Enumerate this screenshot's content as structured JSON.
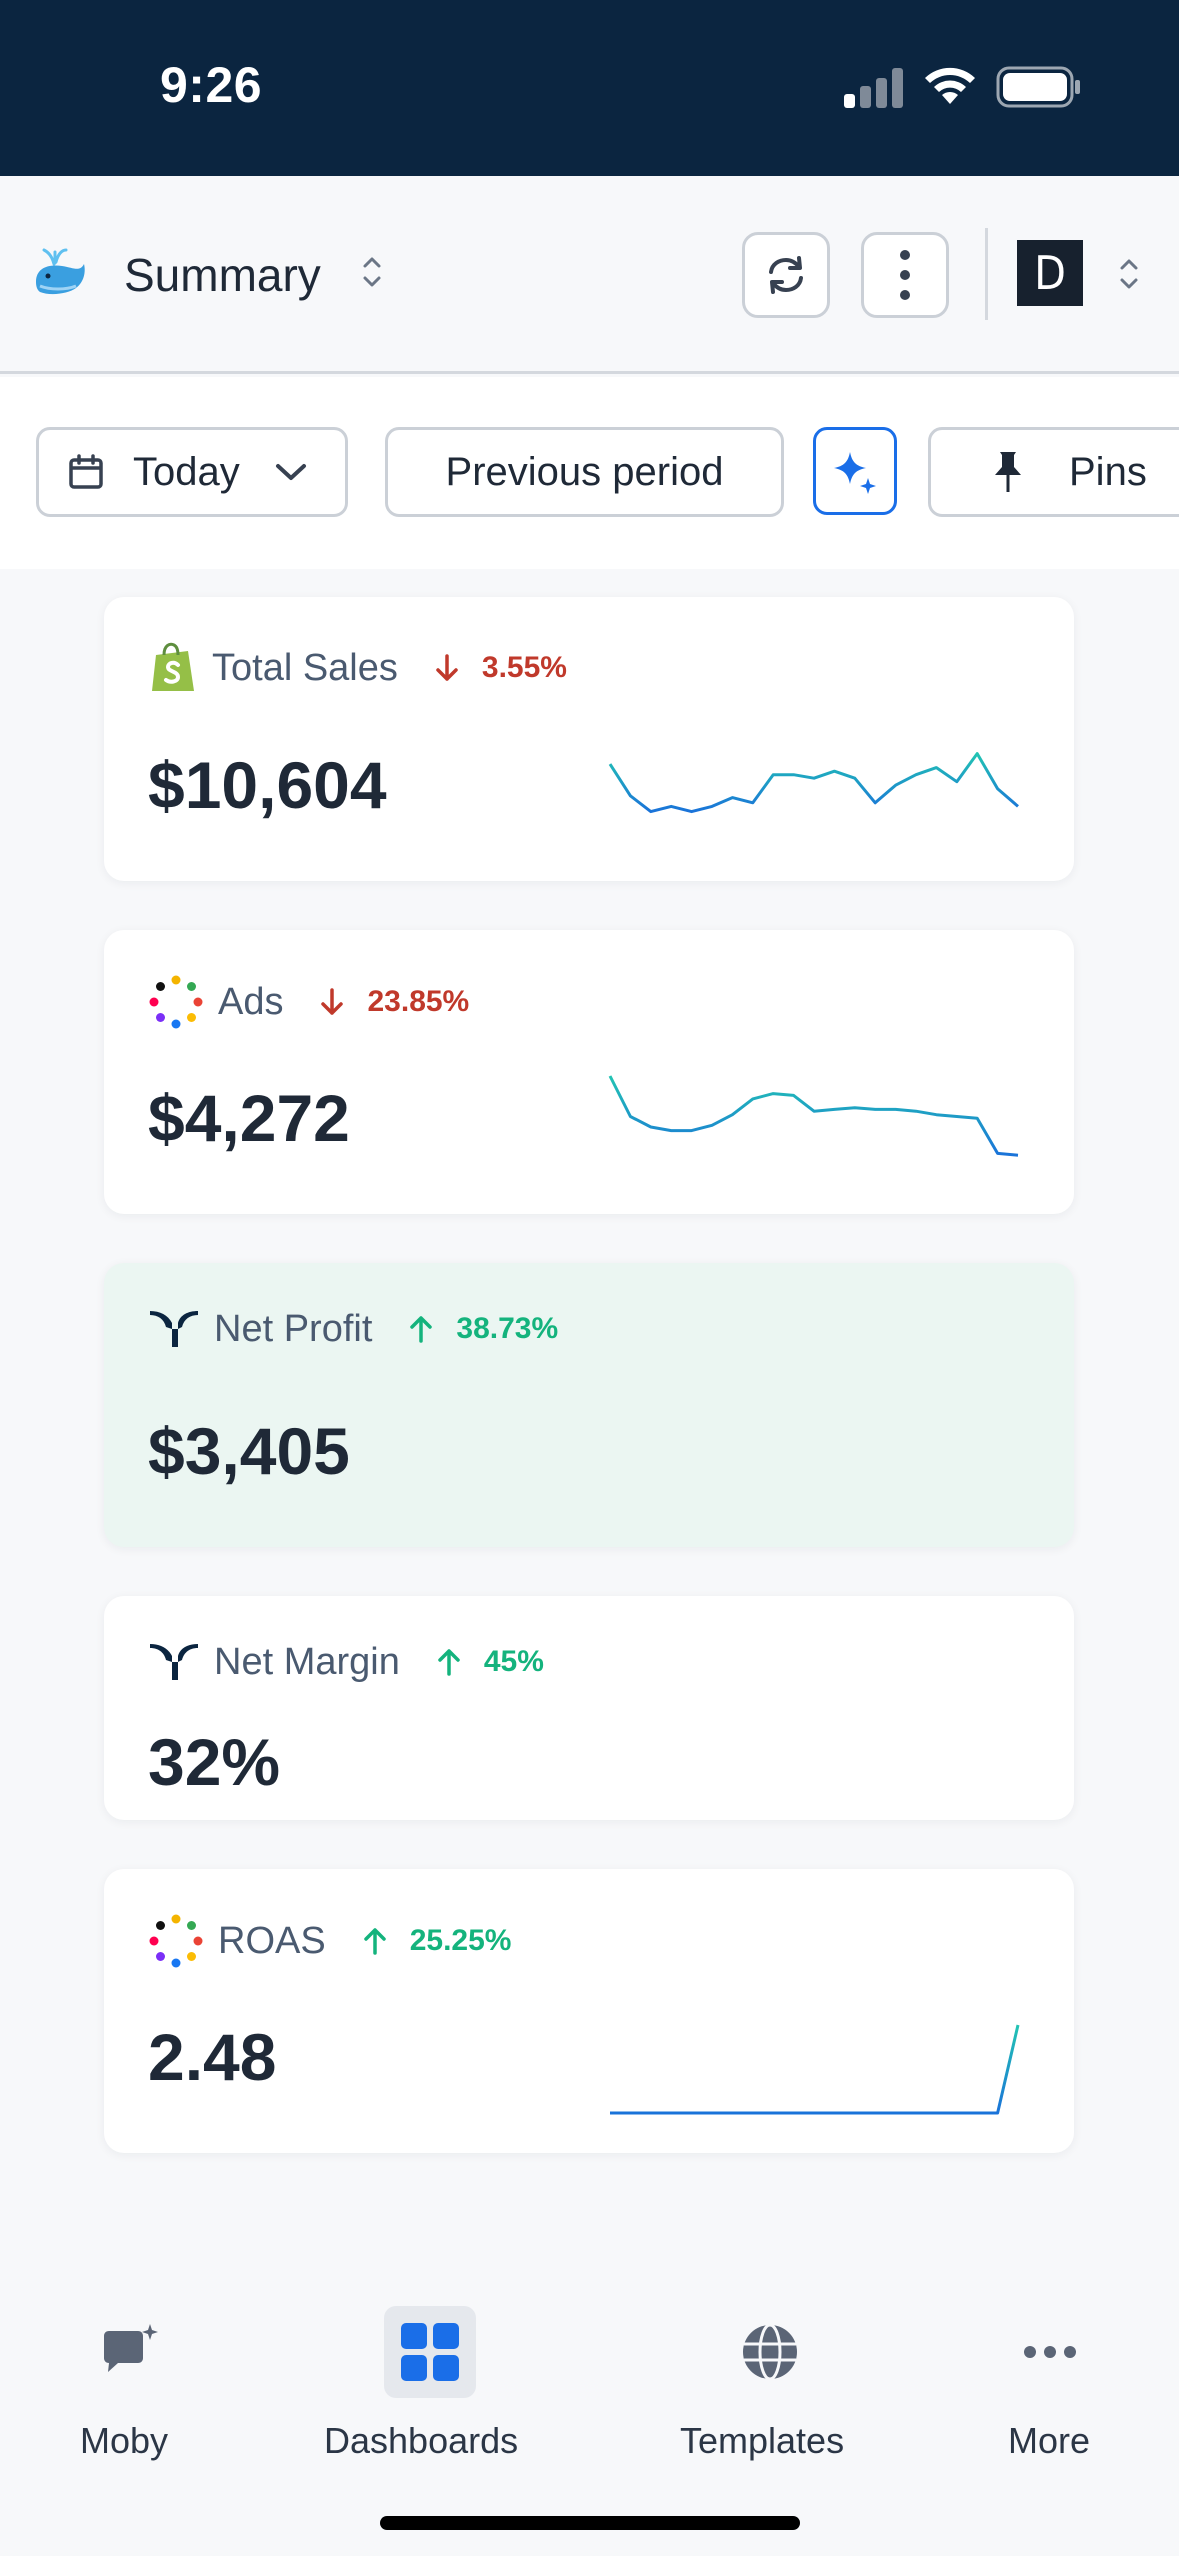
{
  "status_bar": {
    "time": "9:26"
  },
  "header": {
    "title": "Summary",
    "avatar_letter": "D"
  },
  "filters": {
    "date_label": "Today",
    "compare_label": "Previous period",
    "pins_label": "Pins"
  },
  "cards": [
    {
      "title": "Total Sales",
      "change": "3.55%",
      "direction": "down",
      "value": "$10,604",
      "icon": "shopify-icon",
      "sparkline": [
        38,
        20,
        11,
        14,
        11,
        14,
        19,
        16,
        32,
        32,
        30,
        34,
        30,
        16,
        26,
        32,
        36,
        28,
        44,
        24,
        14
      ]
    },
    {
      "title": "Ads",
      "change": "23.85%",
      "direction": "down",
      "value": "$4,272",
      "icon": "ads-dots-icon",
      "sparkline": [
        50,
        27,
        21,
        19,
        19,
        22,
        28,
        37,
        40,
        39,
        30,
        31,
        32,
        31,
        31,
        30,
        28,
        27,
        26,
        6,
        5
      ]
    },
    {
      "title": "Net Profit",
      "change": "38.73%",
      "direction": "up",
      "value": "$3,405",
      "icon": "triple-whale-icon"
    },
    {
      "title": "Net Margin",
      "change": "45%",
      "direction": "up",
      "value": "32%",
      "icon": "triple-whale-icon"
    },
    {
      "title": "ROAS",
      "change": "25.25%",
      "direction": "up",
      "value": "2.48",
      "icon": "ads-dots-icon",
      "sparkline": [
        0,
        0,
        0,
        0,
        0,
        0,
        0,
        0,
        0,
        0,
        0,
        0,
        0,
        0,
        0,
        0,
        0,
        0,
        0,
        0,
        50
      ]
    }
  ],
  "tabs": [
    {
      "label": "Moby",
      "icon": "chat-sparkle-icon",
      "active": false
    },
    {
      "label": "Dashboards",
      "icon": "grid-icon",
      "active": true
    },
    {
      "label": "Templates",
      "icon": "globe-icon",
      "active": false
    },
    {
      "label": "More",
      "icon": "more-dots-icon",
      "active": false
    }
  ],
  "colors": {
    "status_bar_bg": "#0b2540",
    "accent_blue": "#1a6ee8",
    "down_red": "#c0392b",
    "up_green": "#14b37d",
    "highlight_card_bg": "#ebf6f2",
    "spark_top": "#22c4b3",
    "spark_bottom": "#1a73d9"
  }
}
